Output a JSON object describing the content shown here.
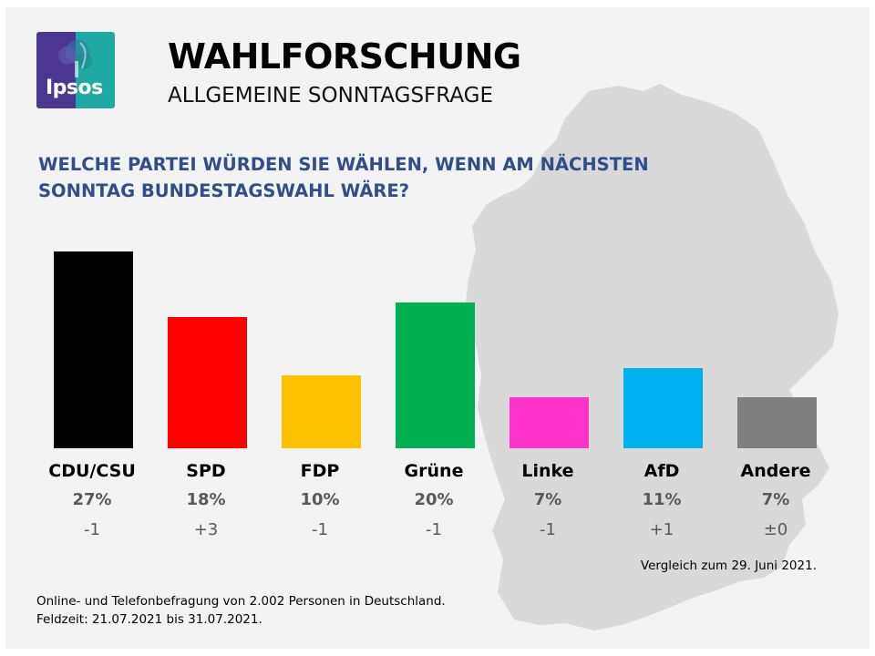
{
  "header": {
    "logo_text": "Ipsos",
    "title": "WAHLFORSCHUNG",
    "subtitle": "ALLGEMEINE SONNTAGSFRAGE"
  },
  "question": "WELCHE PARTEI WÜRDEN SIE WÄHLEN, WENN AM NÄCHSTEN SONNTAG BUNDESTAGSWAHL WÄRE?",
  "chart_data": {
    "type": "bar",
    "title": "Welche Partei würden Sie wählen, wenn am nächsten Sonntag Bundestagswahl wäre?",
    "categories": [
      "CDU/CSU",
      "SPD",
      "FDP",
      "Grüne",
      "Linke",
      "AfD",
      "Andere"
    ],
    "values": [
      27,
      18,
      10,
      20,
      7,
      11,
      7
    ],
    "value_labels": [
      "27%",
      "18%",
      "10%",
      "20%",
      "7%",
      "11%",
      "7%"
    ],
    "changes": [
      "-1",
      "+3",
      "-1",
      "-1",
      "-1",
      "+1",
      "±0"
    ],
    "colors": [
      "#000000",
      "#ff0000",
      "#ffc000",
      "#00b050",
      "#ff33cc",
      "#00b0f0",
      "#7f7f7f"
    ],
    "ylim": [
      0,
      27
    ],
    "xlabel": "",
    "ylabel": ""
  },
  "comparison_note": "Vergleich  zum 29. Juni 2021.",
  "footnote": {
    "line1": "Online- und Telefonbefragung  von 2.002 Personen in Deutschland.",
    "line2": "Feldzeit: 21.07.2021 bis 31.07.2021."
  }
}
